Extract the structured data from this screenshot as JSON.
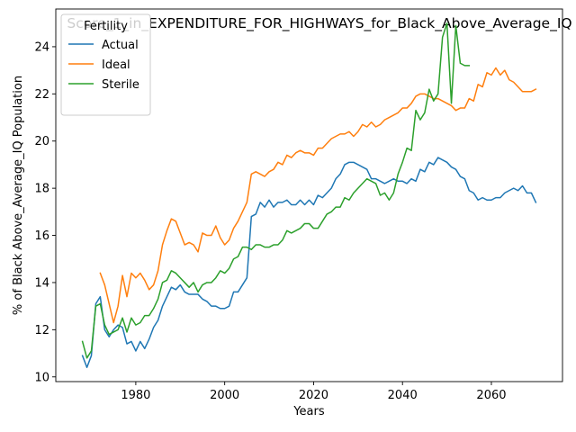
{
  "colors": {
    "actual": "#1f77b4",
    "ideal": "#ff7f0e",
    "sterile": "#2ca02c",
    "axis": "#000000",
    "legend_border": "#cccccc"
  },
  "chart_data": {
    "type": "line",
    "title": "Score_1_in_EXPENDITURE_FOR_HIGHWAYS_for_Black_Above_Average_IQ",
    "xlabel": "Years",
    "ylabel": "% of Black Above_Average_IQ Population",
    "xlim": [
      1962,
      2076
    ],
    "ylim": [
      9.8,
      25.6
    ],
    "xticks": [
      1980,
      2000,
      2020,
      2040,
      2060
    ],
    "yticks": [
      10,
      12,
      14,
      16,
      18,
      20,
      22,
      24
    ],
    "grid": false,
    "legend": {
      "title": "Fertility",
      "placement": "top-left"
    },
    "series": [
      {
        "name": "Actual",
        "color": "#1f77b4",
        "x": [
          1968,
          1969,
          1970,
          1971,
          1972,
          1973,
          1974,
          1975,
          1976,
          1977,
          1978,
          1979,
          1980,
          1981,
          1982,
          1983,
          1984,
          1985,
          1986,
          1987,
          1988,
          1989,
          1990,
          1991,
          1992,
          1993,
          1994,
          1995,
          1996,
          1997,
          1998,
          1999,
          2000,
          2001,
          2002,
          2003,
          2004,
          2005,
          2006,
          2007,
          2008,
          2009,
          2010,
          2011,
          2012,
          2013,
          2014,
          2015,
          2016,
          2017,
          2018,
          2019,
          2020,
          2021,
          2022,
          2023,
          2024,
          2025,
          2026,
          2027,
          2028,
          2029,
          2030,
          2031,
          2032,
          2033,
          2034,
          2035,
          2036,
          2037,
          2038,
          2039,
          2040,
          2041,
          2042,
          2043,
          2044,
          2045,
          2046,
          2047,
          2048,
          2049,
          2050,
          2051,
          2052,
          2053,
          2054,
          2055,
          2056,
          2057,
          2058,
          2059,
          2060,
          2061,
          2062,
          2063,
          2064,
          2065,
          2066,
          2067,
          2068,
          2069,
          2070
        ],
        "values": [
          10.9,
          10.4,
          10.9,
          13.1,
          13.4,
          12.0,
          11.7,
          12.0,
          12.2,
          12.1,
          11.4,
          11.5,
          11.1,
          11.5,
          11.2,
          11.6,
          12.1,
          12.4,
          13.0,
          13.4,
          13.8,
          13.7,
          13.9,
          13.6,
          13.5,
          13.5,
          13.5,
          13.3,
          13.2,
          13.0,
          13.0,
          12.9,
          12.9,
          13.0,
          13.6,
          13.6,
          13.9,
          14.2,
          16.8,
          16.9,
          17.4,
          17.2,
          17.5,
          17.2,
          17.4,
          17.4,
          17.5,
          17.3,
          17.3,
          17.5,
          17.3,
          17.5,
          17.3,
          17.7,
          17.6,
          17.8,
          18.0,
          18.4,
          18.6,
          19.0,
          19.1,
          19.1,
          19.0,
          18.9,
          18.8,
          18.4,
          18.4,
          18.3,
          18.2,
          18.3,
          18.4,
          18.3,
          18.3,
          18.2,
          18.4,
          18.3,
          18.8,
          18.7,
          19.1,
          19.0,
          19.3,
          19.2,
          19.1,
          18.9,
          18.8,
          18.5,
          18.4,
          17.9,
          17.8,
          17.5,
          17.6,
          17.5,
          17.5,
          17.6,
          17.6,
          17.8,
          17.9,
          18.0,
          17.9,
          18.1,
          17.8,
          17.8,
          17.4
        ]
      },
      {
        "name": "Ideal",
        "color": "#ff7f0e",
        "x": [
          1972,
          1973,
          1974,
          1975,
          1976,
          1977,
          1978,
          1979,
          1980,
          1981,
          1982,
          1983,
          1984,
          1985,
          1986,
          1987,
          1988,
          1989,
          1990,
          1991,
          1992,
          1993,
          1994,
          1995,
          1996,
          1997,
          1998,
          1999,
          2000,
          2001,
          2002,
          2003,
          2004,
          2005,
          2006,
          2007,
          2008,
          2009,
          2010,
          2011,
          2012,
          2013,
          2014,
          2015,
          2016,
          2017,
          2018,
          2019,
          2020,
          2021,
          2022,
          2023,
          2024,
          2025,
          2026,
          2027,
          2028,
          2029,
          2030,
          2031,
          2032,
          2033,
          2034,
          2035,
          2036,
          2037,
          2038,
          2039,
          2040,
          2041,
          2042,
          2043,
          2044,
          2045,
          2046,
          2047,
          2048,
          2049,
          2050,
          2051,
          2052,
          2053,
          2054,
          2055,
          2056,
          2057,
          2058,
          2059,
          2060,
          2061,
          2062,
          2063,
          2064,
          2065,
          2066,
          2067,
          2068,
          2069,
          2070
        ],
        "values": [
          14.4,
          13.9,
          13.1,
          12.3,
          13.0,
          14.3,
          13.4,
          14.4,
          14.2,
          14.4,
          14.1,
          13.7,
          13.9,
          14.5,
          15.6,
          16.2,
          16.7,
          16.6,
          16.1,
          15.6,
          15.7,
          15.6,
          15.3,
          16.1,
          16.0,
          16.0,
          16.4,
          15.9,
          15.6,
          15.8,
          16.3,
          16.6,
          17.0,
          17.4,
          18.6,
          18.7,
          18.6,
          18.5,
          18.7,
          18.8,
          19.1,
          19.0,
          19.4,
          19.3,
          19.5,
          19.6,
          19.5,
          19.5,
          19.4,
          19.7,
          19.7,
          19.9,
          20.1,
          20.2,
          20.3,
          20.3,
          20.4,
          20.2,
          20.4,
          20.7,
          20.6,
          20.8,
          20.6,
          20.7,
          20.9,
          21.0,
          21.1,
          21.2,
          21.4,
          21.4,
          21.6,
          21.9,
          22.0,
          22.0,
          21.9,
          21.8,
          21.8,
          21.7,
          21.6,
          21.5,
          21.3,
          21.4,
          21.4,
          21.8,
          21.7,
          22.4,
          22.3,
          22.9,
          22.8,
          23.1,
          22.8,
          23.0,
          22.6,
          22.5,
          22.3,
          22.1,
          22.1,
          22.1,
          22.2
        ]
      },
      {
        "name": "Sterile",
        "color": "#2ca02c",
        "x": [
          1968,
          1969,
          1970,
          1971,
          1972,
          1973,
          1974,
          1975,
          1976,
          1977,
          1978,
          1979,
          1980,
          1981,
          1982,
          1983,
          1984,
          1985,
          1986,
          1987,
          1988,
          1989,
          1990,
          1991,
          1992,
          1993,
          1994,
          1995,
          1996,
          1997,
          1998,
          1999,
          2000,
          2001,
          2002,
          2003,
          2004,
          2005,
          2006,
          2007,
          2008,
          2009,
          2010,
          2011,
          2012,
          2013,
          2014,
          2015,
          2016,
          2017,
          2018,
          2019,
          2020,
          2021,
          2022,
          2023,
          2024,
          2025,
          2026,
          2027,
          2028,
          2029,
          2030,
          2031,
          2032,
          2033,
          2034,
          2035,
          2036,
          2037,
          2038,
          2039,
          2040,
          2041,
          2042,
          2043,
          2044,
          2045,
          2046,
          2047,
          2048,
          2049,
          2050,
          2051,
          2052,
          2053,
          2054,
          2055
        ],
        "values": [
          11.5,
          10.8,
          11.1,
          13.0,
          13.1,
          12.2,
          11.8,
          11.9,
          12.0,
          12.5,
          11.9,
          12.5,
          12.2,
          12.3,
          12.6,
          12.6,
          12.9,
          13.3,
          14.0,
          14.1,
          14.5,
          14.4,
          14.2,
          14.0,
          13.8,
          14.0,
          13.6,
          13.9,
          14.0,
          14.0,
          14.2,
          14.5,
          14.4,
          14.6,
          15.0,
          15.1,
          15.5,
          15.5,
          15.4,
          15.6,
          15.6,
          15.5,
          15.5,
          15.6,
          15.6,
          15.8,
          16.2,
          16.1,
          16.2,
          16.3,
          16.5,
          16.5,
          16.3,
          16.3,
          16.6,
          16.9,
          17.0,
          17.2,
          17.2,
          17.6,
          17.5,
          17.8,
          18.0,
          18.2,
          18.4,
          18.3,
          18.2,
          17.7,
          17.8,
          17.5,
          17.8,
          18.6,
          19.1,
          19.7,
          19.6,
          21.3,
          20.9,
          21.2,
          22.2,
          21.7,
          22.0,
          24.4,
          25.0,
          21.6,
          24.9,
          23.3,
          23.2,
          23.2
        ]
      }
    ]
  }
}
